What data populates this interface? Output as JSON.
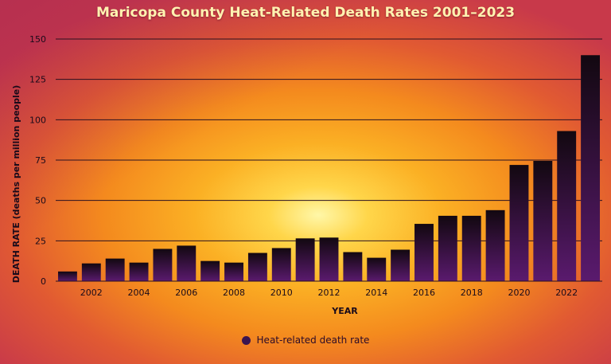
{
  "chart_data": {
    "type": "bar",
    "title": "Maricopa County Heat-Related Death Rates 2001–2023",
    "xlabel": "YEAR",
    "ylabel": "DEATH RATE (deaths per million people)",
    "ylim": [
      0,
      150
    ],
    "yticks": [
      0,
      25,
      50,
      75,
      100,
      125,
      150
    ],
    "xticks": [
      "2002",
      "2004",
      "2006",
      "2008",
      "2010",
      "2012",
      "2014",
      "2016",
      "2018",
      "2020",
      "2022"
    ],
    "grid": true,
    "legend_position": "bottom-center",
    "categories": [
      "2001",
      "2002",
      "2003",
      "2004",
      "2005",
      "2006",
      "2007",
      "2008",
      "2009",
      "2010",
      "2011",
      "2012",
      "2013",
      "2014",
      "2015",
      "2016",
      "2017",
      "2018",
      "2019",
      "2020",
      "2021",
      "2022",
      "2023"
    ],
    "series": [
      {
        "name": "Heat-related death rate",
        "values": [
          6,
          11,
          14,
          11.5,
          20,
          22,
          12.5,
          11.5,
          17.5,
          20.5,
          26.5,
          27,
          18,
          14.5,
          19.5,
          35.5,
          40.5,
          40.5,
          44,
          72,
          74.5,
          93,
          140
        ]
      }
    ],
    "colors": {
      "bar_top": "#120810",
      "bar_bottom": "#5a1a6e",
      "gridline": "#2a1020",
      "legend_marker": "#3a1450"
    }
  }
}
